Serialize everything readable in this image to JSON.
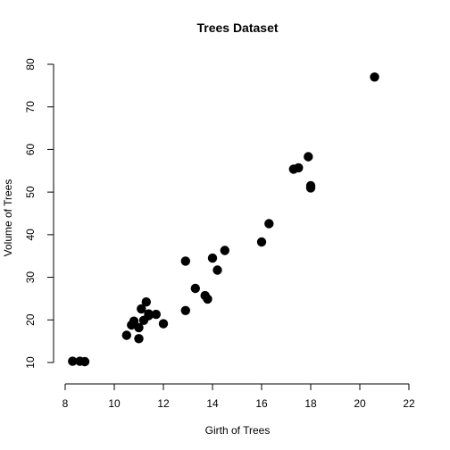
{
  "chart_data": {
    "type": "scatter",
    "title": "Trees Dataset",
    "xlabel": "Girth of Trees",
    "ylabel": "Volume of Trees",
    "xlim": [
      8,
      22
    ],
    "ylim": [
      10,
      80
    ],
    "xticks": [
      8,
      10,
      12,
      14,
      16,
      18,
      20,
      22
    ],
    "yticks": [
      10,
      20,
      30,
      40,
      50,
      60,
      70,
      80
    ],
    "grid": false,
    "legend": "none",
    "point_color": "#000000",
    "series": [
      {
        "points": [
          [
            8.3,
            10.3
          ],
          [
            8.6,
            10.3
          ],
          [
            8.8,
            10.2
          ],
          [
            10.5,
            16.4
          ],
          [
            10.7,
            18.8
          ],
          [
            10.8,
            19.7
          ],
          [
            11.0,
            15.6
          ],
          [
            11.0,
            18.2
          ],
          [
            11.1,
            22.6
          ],
          [
            11.2,
            19.9
          ],
          [
            11.3,
            24.2
          ],
          [
            11.4,
            21.0
          ],
          [
            11.4,
            21.4
          ],
          [
            11.7,
            21.3
          ],
          [
            12.0,
            19.1
          ],
          [
            12.9,
            22.2
          ],
          [
            12.9,
            33.8
          ],
          [
            13.3,
            27.4
          ],
          [
            13.7,
            25.7
          ],
          [
            13.8,
            24.9
          ],
          [
            14.0,
            34.5
          ],
          [
            14.2,
            31.7
          ],
          [
            14.5,
            36.3
          ],
          [
            16.0,
            38.3
          ],
          [
            16.3,
            42.6
          ],
          [
            17.3,
            55.4
          ],
          [
            17.5,
            55.7
          ],
          [
            17.9,
            58.3
          ],
          [
            18.0,
            51.5
          ],
          [
            18.0,
            51.0
          ],
          [
            20.6,
            77.0
          ]
        ]
      }
    ]
  }
}
